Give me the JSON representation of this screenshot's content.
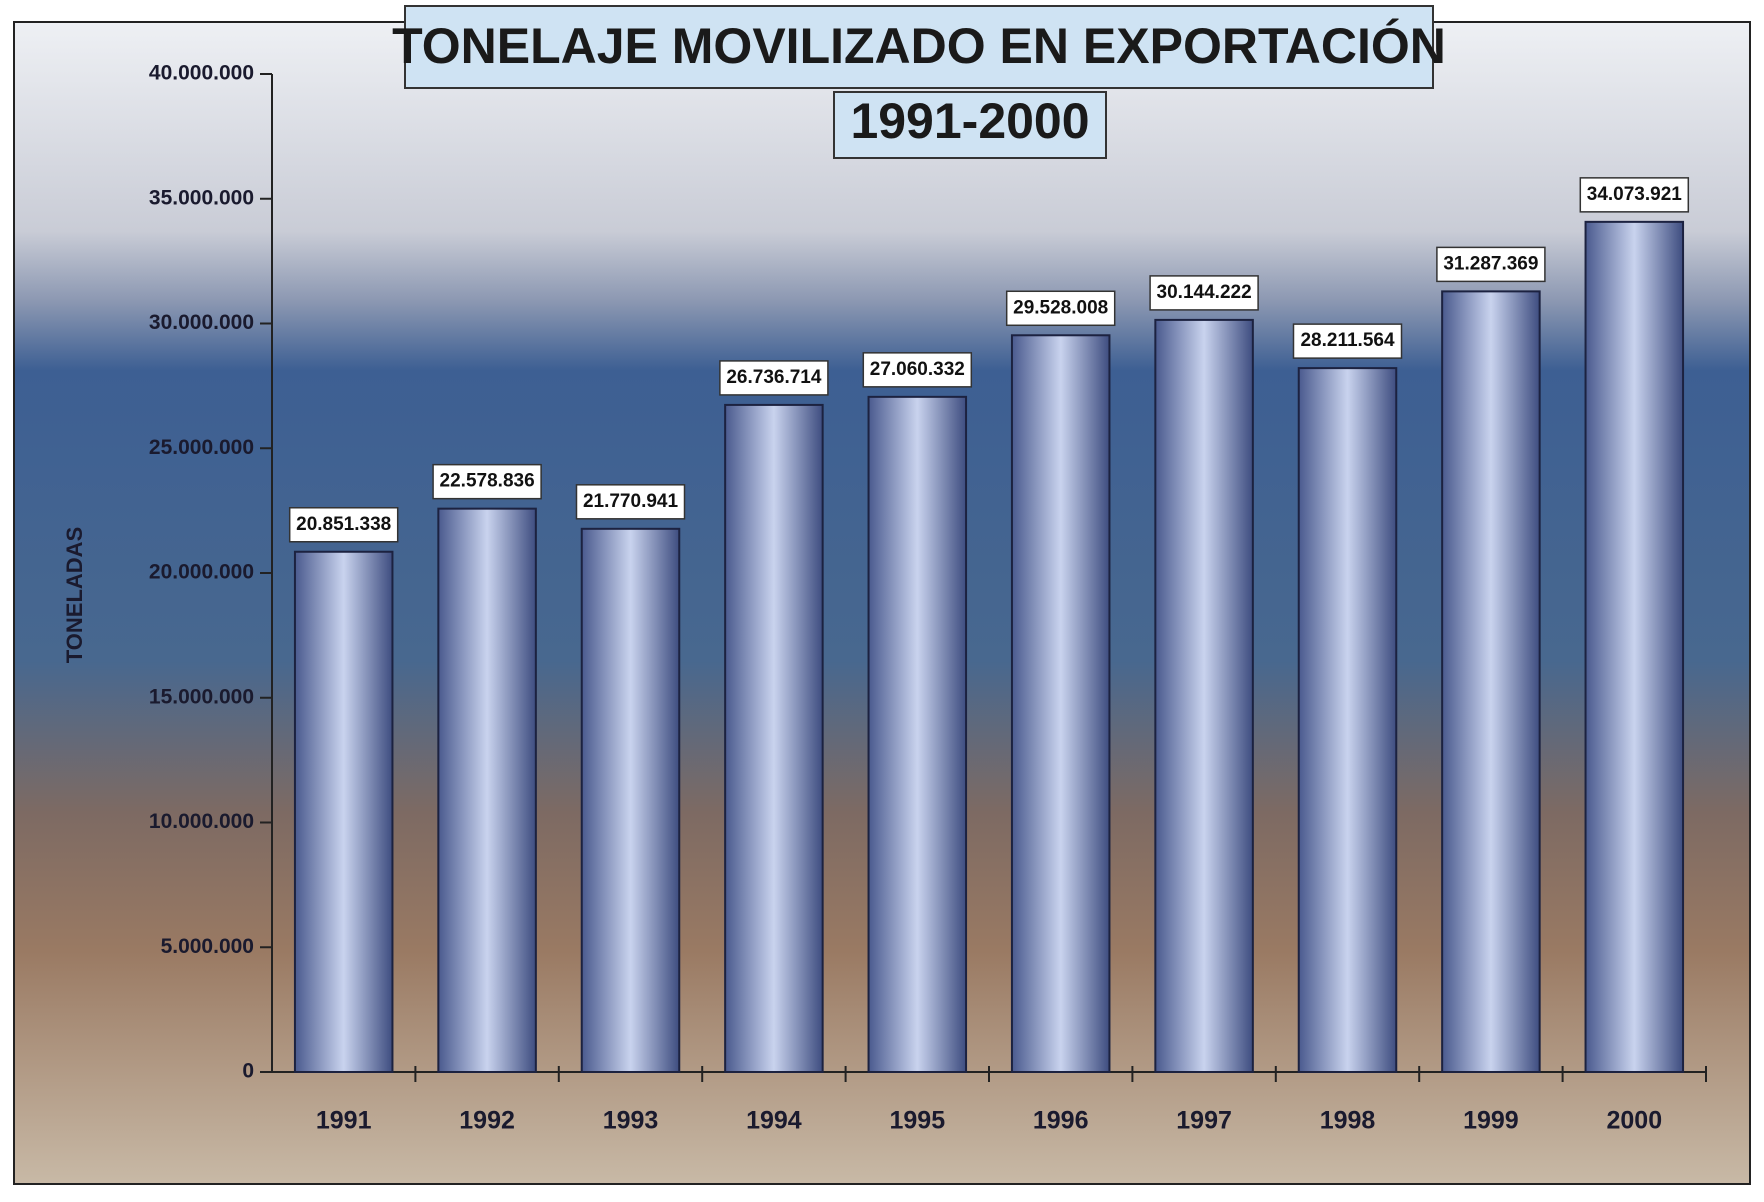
{
  "chart_data": {
    "type": "bar",
    "title": "TONELAJE MOVILIZADO EN EXPORTACIÓN",
    "subtitle": "1991-2000",
    "y_label": "TONELADAS",
    "categories": [
      "1991",
      "1992",
      "1993",
      "1994",
      "1995",
      "1996",
      "1997",
      "1998",
      "1999",
      "2000"
    ],
    "values": [
      20851338,
      22578836,
      21770941,
      26736714,
      27060332,
      29528008,
      30144222,
      28211564,
      31287369,
      34073921
    ],
    "value_labels": [
      "20.851.338",
      "22.578.836",
      "21.770.941",
      "26.736.714",
      "27.060.332",
      "29.528.008",
      "30.144.222",
      "28.211.564",
      "31.287.369",
      "34.073.921"
    ],
    "color": "#7a8fc4",
    "ylim": [
      0,
      40000000
    ],
    "yticks": [
      0,
      {
        "value": 5000000,
        "label": "5.000.000"
      },
      {
        "value": 10000000,
        "label": "10.000.000"
      },
      {
        "value": 15000000,
        "label": "15.000.000"
      },
      {
        "value": 20000000,
        "label": "20.000.000"
      },
      {
        "value": 25000000,
        "label": "25.000.000"
      },
      {
        "value": 30000000,
        "label": "30.000.000"
      },
      {
        "value": 35000000,
        "label": "35.000.000"
      },
      {
        "value": 40000000,
        "label": "40.000.000"
      }
    ],
    "grid": false
  }
}
